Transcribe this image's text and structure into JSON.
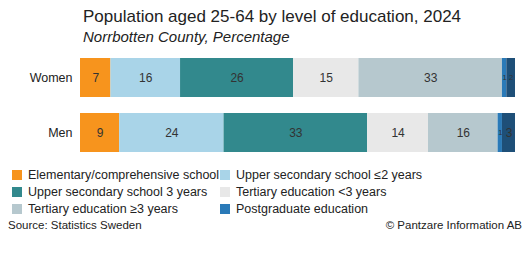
{
  "chart_data": {
    "type": "bar",
    "title": "Population aged 25-64 by level of education, 2024",
    "subtitle": "Norrbotten County, Percentage",
    "source": "Source: Statistics Sweden",
    "credit": "© Pantzare Information AB",
    "orientation": "horizontal",
    "stacked": true,
    "data_labels": true,
    "tick_labels": "y",
    "legend": "bottom",
    "categories": [
      "Women",
      "Men"
    ],
    "xlim": [
      0,
      100
    ],
    "series": [
      {
        "name": "Elementary/comprehensive school",
        "color": "#f7941d",
        "values": [
          7,
          9
        ]
      },
      {
        "name": "Upper secondary school ≤2 years",
        "color": "#a9d4e8",
        "values": [
          16,
          24
        ]
      },
      {
        "name": "Upper secondary school 3 years",
        "color": "#32898d",
        "values": [
          26,
          33
        ]
      },
      {
        "name": "Tertiary education <3 years",
        "color": "#e8e8e8",
        "values": [
          15,
          14
        ]
      },
      {
        "name": "Tertiary education ≥3 years",
        "color": "#b6c8ce",
        "values": [
          33,
          16
        ]
      },
      {
        "name": "Postgraduate education",
        "color": "#2a7ab8",
        "values": [
          1,
          1
        ]
      },
      {
        "name": null,
        "color": "#1e4f78",
        "values": [
          2,
          3
        ]
      }
    ]
  }
}
